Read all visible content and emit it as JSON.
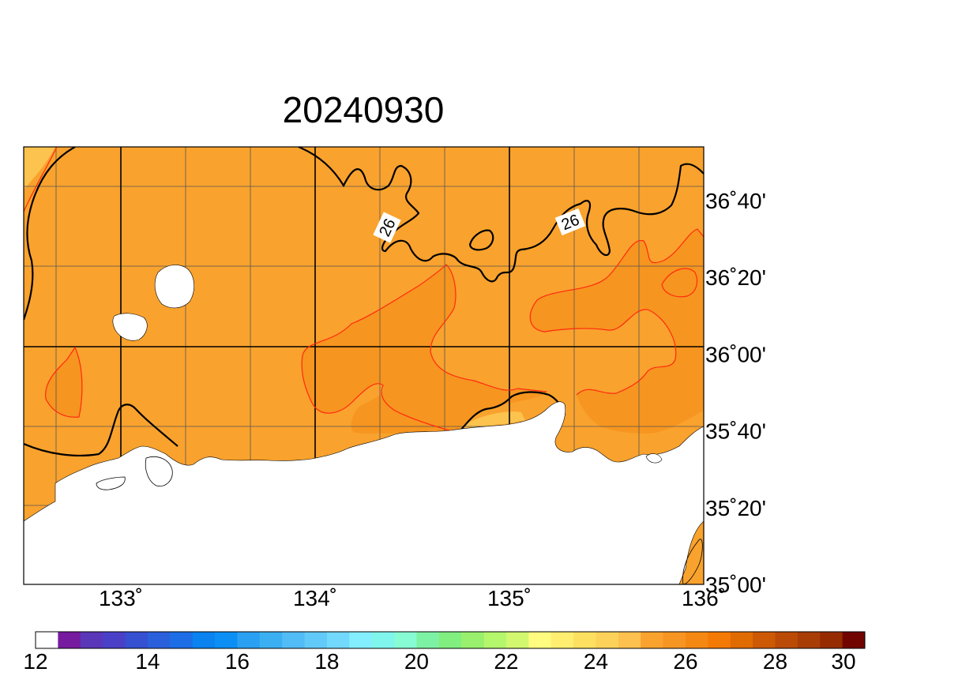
{
  "title": "20240930",
  "map": {
    "lon_range": [
      132.5,
      136.0
    ],
    "lat_range": [
      35.0,
      36.9
    ],
    "lon_ticks": [
      {
        "value": 133,
        "label": "133˚"
      },
      {
        "value": 134,
        "label": "134˚"
      },
      {
        "value": 135,
        "label": "135˚"
      },
      {
        "value": 136,
        "label": "136˚"
      }
    ],
    "lat_ticks": [
      {
        "value": 36.6667,
        "label": "36˚40'"
      },
      {
        "value": 36.3333,
        "label": "36˚20'"
      },
      {
        "value": 36.0,
        "label": "36˚00'"
      },
      {
        "value": 35.6667,
        "label": "35˚40'"
      },
      {
        "value": 35.3333,
        "label": "35˚20'"
      },
      {
        "value": 35.0,
        "label": "35˚00'"
      }
    ],
    "contour_labels": [
      "26",
      "26"
    ],
    "colors": {
      "sea_base": "#f9a22d",
      "warm_patch": "#f6951f",
      "cool_patch": "#fcc34e",
      "land": "#ffffff",
      "contour_black": "#000000",
      "contour_red": "#ff2a10"
    }
  },
  "colorbar": {
    "min": 12,
    "max": 30,
    "step": 0.5,
    "labels": [
      "12",
      "14",
      "16",
      "18",
      "20",
      "22",
      "24",
      "26",
      "28",
      "30"
    ],
    "colors": [
      "#ffffff",
      "#761aa0",
      "#5a36b8",
      "#4a40c8",
      "#3550d0",
      "#2b60dc",
      "#1d6ee6",
      "#0a82f0",
      "#0b8ff4",
      "#2aa0f2",
      "#3ab0f2",
      "#52bcf6",
      "#62caf8",
      "#72d8fc",
      "#82eefe",
      "#80f5ec",
      "#86fbd4",
      "#7ef2a4",
      "#80ef80",
      "#98f06c",
      "#b4f66c",
      "#d2f870",
      "#fffc80",
      "#ffee70",
      "#fee060",
      "#fdd25a",
      "#fcc14e",
      "#f9a22d",
      "#f79523",
      "#f48813",
      "#f47a05",
      "#e06b00",
      "#cd5805",
      "#bb4a06",
      "#a93d06",
      "#962b00",
      "#720400"
    ]
  }
}
